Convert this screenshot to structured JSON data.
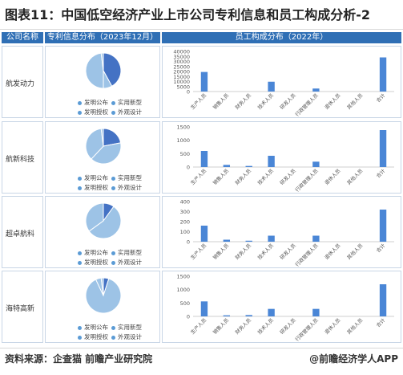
{
  "title": "图表11：中国低空经济产业上市公司专利信息和员工构成分析-2",
  "headers": {
    "company": "公司名称",
    "patent": "专利信息分布（2023年12月）",
    "staff": "员工构成分布（2022年）"
  },
  "legend": [
    "发明公布",
    "实用新型",
    "发明授权",
    "外观设计"
  ],
  "footer": {
    "source": "资料来源：企查猫 前瞻产业研究院",
    "brand": "@前瞻经济学人APP"
  },
  "colors": {
    "accent": "#2f6fb5",
    "bar": "#4a86d6",
    "pie_dark": "#4472c4",
    "pie_light": "#9dc3e6"
  },
  "chart_data": [
    {
      "company": "航发动力",
      "pie": {
        "type": "pie",
        "labels": [
          "发明公布",
          "实用新型",
          "发明授权",
          "外观设计"
        ],
        "values": [
          42,
          8,
          48,
          2
        ]
      },
      "bar": {
        "type": "bar",
        "categories": [
          "生产人员",
          "销售人员",
          "财务人员",
          "技术人员",
          "研发人员",
          "行政管理人员",
          "退休人员",
          "其他人员",
          "合计"
        ],
        "values": [
          19500,
          0,
          0,
          9800,
          0,
          3000,
          0,
          0,
          34000
        ],
        "ylim": [
          0,
          40000
        ],
        "yticks": [
          0,
          5000,
          10000,
          15000,
          20000,
          25000,
          30000,
          35000,
          40000
        ]
      }
    },
    {
      "company": "航新科技",
      "pie": {
        "type": "pie",
        "labels": [
          "发明公布",
          "实用新型",
          "发明授权",
          "外观设计"
        ],
        "values": [
          22,
          40,
          36,
          2
        ]
      },
      "bar": {
        "type": "bar",
        "categories": [
          "生产人员",
          "销售人员",
          "财务人员",
          "技术人员",
          "研发人员",
          "行政管理人员",
          "退休人员",
          "其他人员",
          "合计"
        ],
        "values": [
          600,
          80,
          40,
          420,
          0,
          200,
          0,
          0,
          1380
        ],
        "ylim": [
          0,
          1500
        ],
        "yticks": [
          0,
          500,
          1000,
          1500
        ]
      }
    },
    {
      "company": "超卓航科",
      "pie": {
        "type": "pie",
        "labels": [
          "发明公布",
          "实用新型",
          "发明授权",
          "外观设计"
        ],
        "values": [
          10,
          55,
          35,
          0
        ]
      },
      "bar": {
        "type": "bar",
        "categories": [
          "生产人员",
          "销售人员",
          "财务人员",
          "技术人员",
          "研发人员",
          "行政管理人员",
          "退休人员",
          "其他人员",
          "合计"
        ],
        "values": [
          160,
          20,
          10,
          60,
          0,
          60,
          0,
          0,
          320
        ],
        "ylim": [
          0,
          400
        ],
        "yticks": [
          0,
          100,
          200,
          300,
          400
        ]
      }
    },
    {
      "company": "海特高新",
      "pie": {
        "type": "pie",
        "labels": [
          "发明公布",
          "实用新型",
          "发明授权",
          "外观设计"
        ],
        "values": [
          5,
          88,
          5,
          2
        ]
      },
      "bar": {
        "type": "bar",
        "categories": [
          "生产人员",
          "销售人员",
          "财务人员",
          "技术人员",
          "研发人员",
          "行政管理人员",
          "退休人员",
          "其他人员",
          "合计"
        ],
        "values": [
          560,
          40,
          50,
          280,
          0,
          280,
          0,
          0,
          1200
        ],
        "ylim": [
          0,
          1500
        ],
        "yticks": [
          0,
          500,
          1000,
          1500
        ]
      }
    }
  ]
}
